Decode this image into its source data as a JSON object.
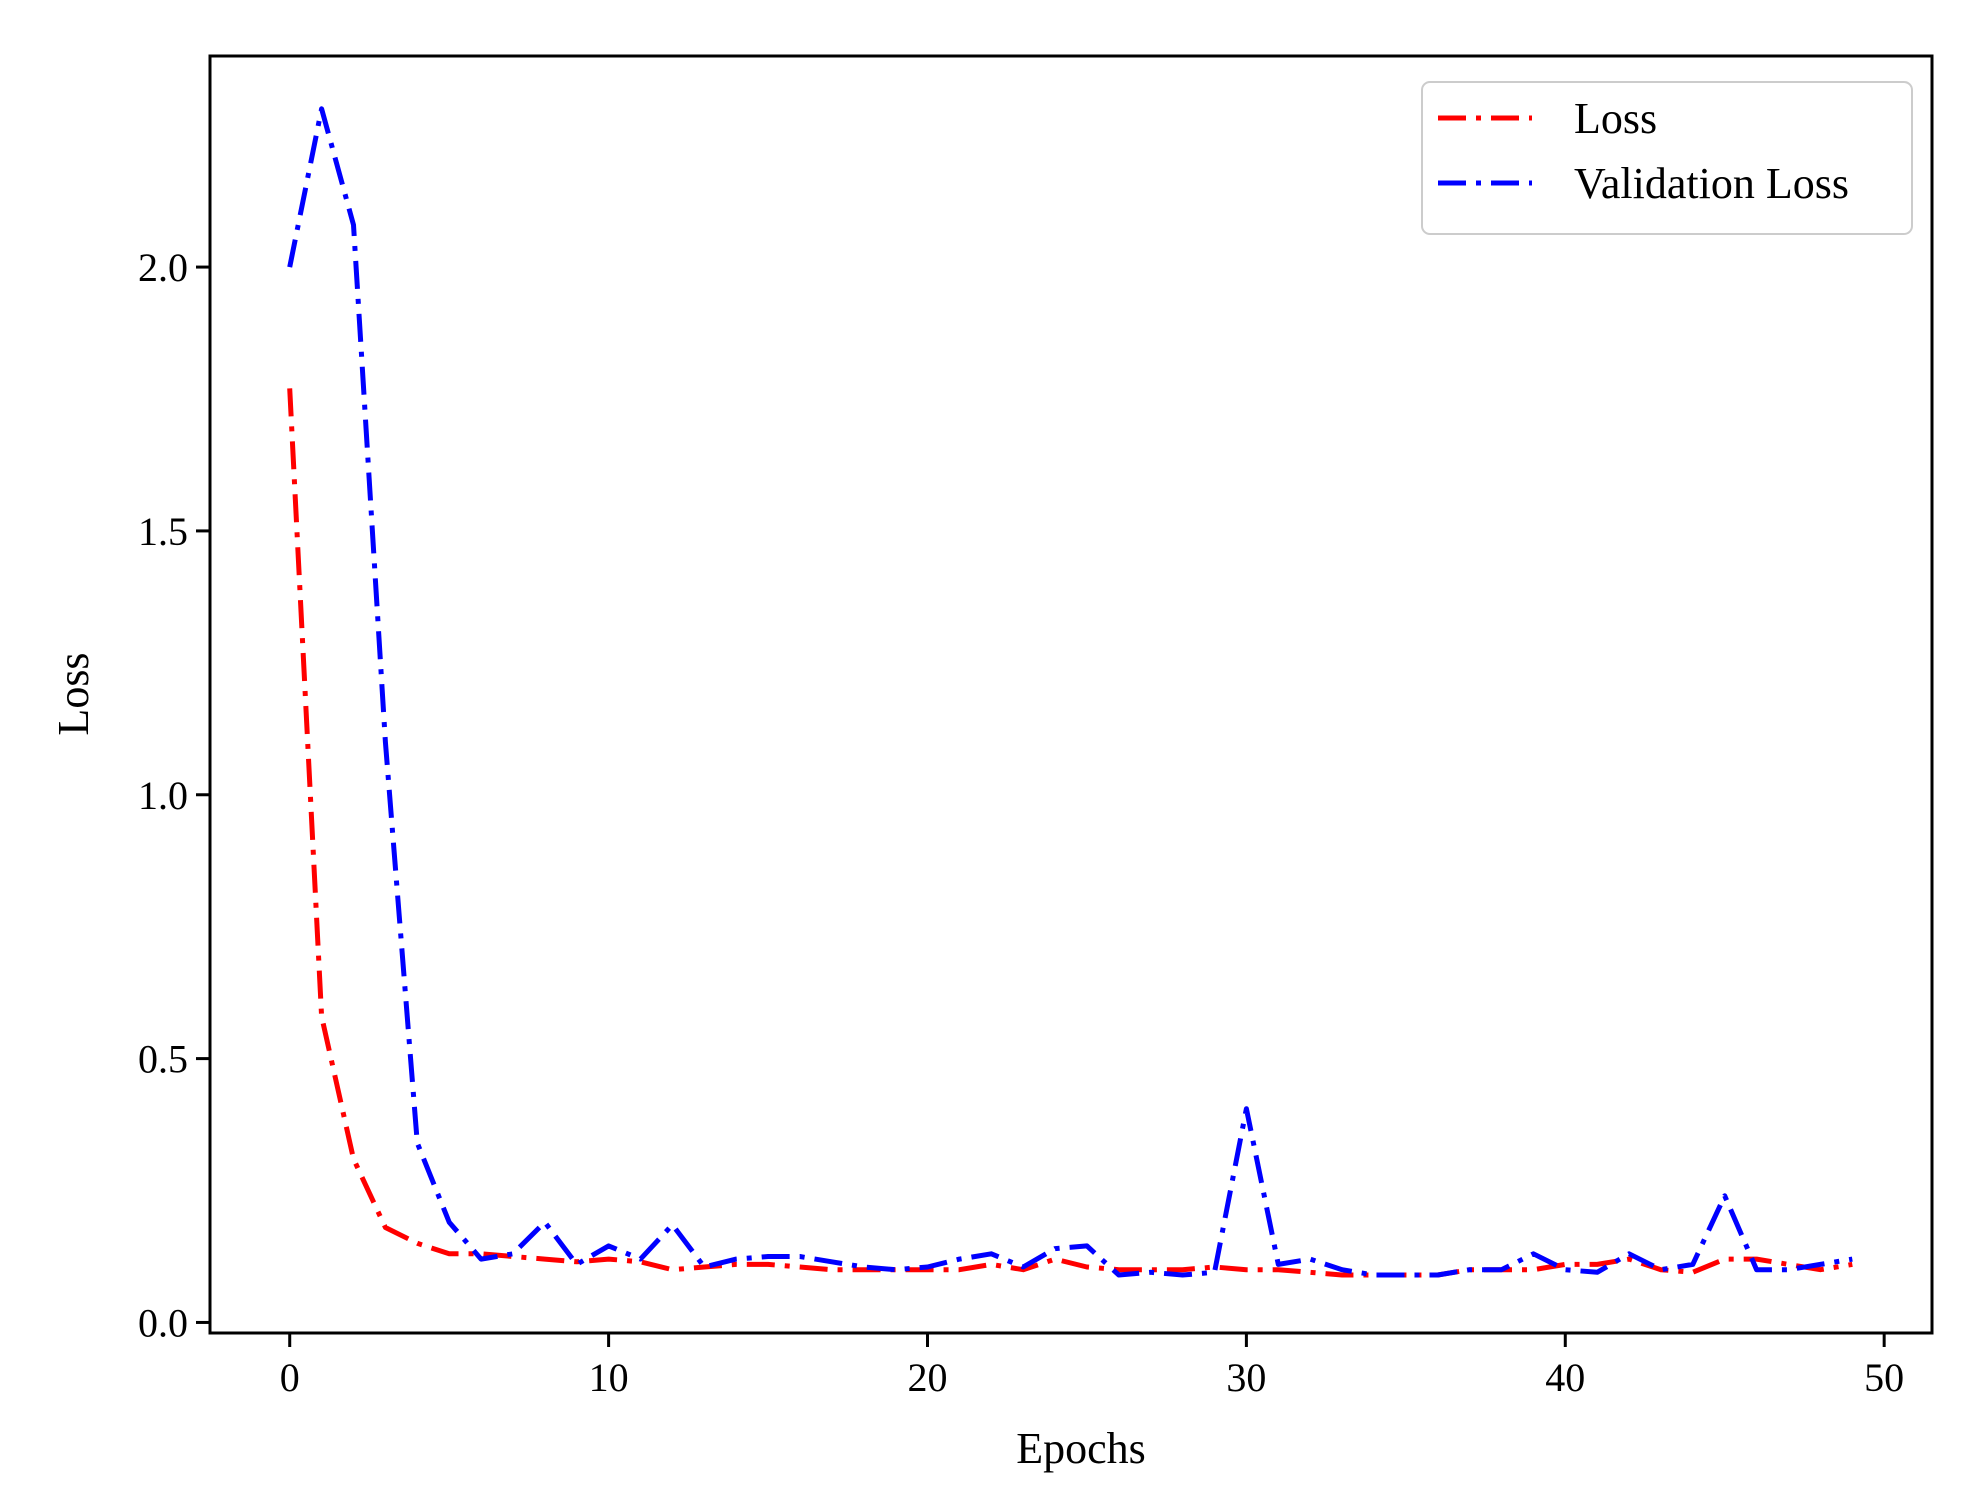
{
  "chart_data": {
    "type": "line",
    "title": "",
    "xlabel": "Epochs",
    "ylabel": "Loss",
    "xlim": [
      -2.5,
      51.5
    ],
    "ylim": [
      -0.02,
      2.4
    ],
    "x_ticks": [
      0,
      10,
      20,
      30,
      40,
      50
    ],
    "y_ticks": [
      0.0,
      0.5,
      1.0,
      1.5,
      2.0
    ],
    "x_tick_labels": [
      "0",
      "10",
      "20",
      "30",
      "40",
      "50"
    ],
    "y_tick_labels": [
      "0.0",
      "0.5",
      "1.0",
      "1.5",
      "2.0"
    ],
    "grid": false,
    "legend_position": "top-right",
    "x": [
      0,
      1,
      2,
      3,
      4,
      5,
      6,
      7,
      8,
      9,
      10,
      11,
      12,
      13,
      14,
      15,
      16,
      17,
      18,
      19,
      20,
      21,
      22,
      23,
      24,
      25,
      26,
      27,
      28,
      29,
      30,
      31,
      32,
      33,
      34,
      35,
      36,
      37,
      38,
      39,
      40,
      41,
      42,
      43,
      44,
      45,
      46,
      47,
      48,
      49
    ],
    "series": [
      {
        "name": "Loss",
        "color": "#ff0000",
        "values": [
          1.77,
          0.58,
          0.31,
          0.18,
          0.15,
          0.13,
          0.13,
          0.125,
          0.12,
          0.115,
          0.12,
          0.115,
          0.1,
          0.105,
          0.11,
          0.11,
          0.105,
          0.1,
          0.1,
          0.1,
          0.1,
          0.1,
          0.11,
          0.1,
          0.12,
          0.105,
          0.1,
          0.1,
          0.1,
          0.105,
          0.1,
          0.1,
          0.095,
          0.09,
          0.09,
          0.09,
          0.09,
          0.1,
          0.1,
          0.1,
          0.11,
          0.11,
          0.12,
          0.1,
          0.095,
          0.12,
          0.12,
          0.11,
          0.1,
          0.11
        ]
      },
      {
        "name": "Validation Loss",
        "color": "#0000ff",
        "values": [
          2.0,
          2.3,
          2.08,
          1.1,
          0.34,
          0.19,
          0.12,
          0.13,
          0.19,
          0.11,
          0.145,
          0.12,
          0.185,
          0.105,
          0.12,
          0.125,
          0.125,
          0.115,
          0.105,
          0.1,
          0.105,
          0.12,
          0.13,
          0.105,
          0.14,
          0.145,
          0.09,
          0.095,
          0.09,
          0.095,
          0.405,
          0.11,
          0.12,
          0.1,
          0.09,
          0.09,
          0.09,
          0.1,
          0.1,
          0.13,
          0.1,
          0.095,
          0.13,
          0.1,
          0.11,
          0.24,
          0.1,
          0.1,
          0.11,
          0.12
        ]
      }
    ]
  }
}
